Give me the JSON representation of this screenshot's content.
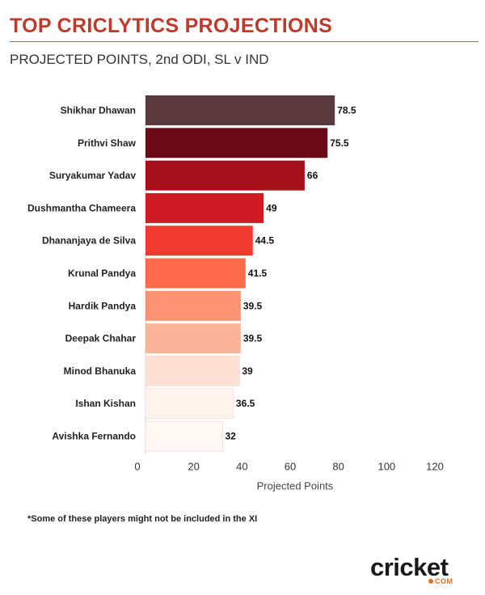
{
  "header": {
    "title": "TOP CRICLYTICS PROJECTIONS",
    "subtitle": "PROJECTED POINTS, 2nd ODI, SL v IND"
  },
  "footnote": "*Some of these players might not be included in the XI",
  "logo": {
    "word": "cricket",
    "sub": "COM"
  },
  "chart_data": {
    "type": "bar",
    "orientation": "horizontal",
    "categories": [
      "Shikhar Dhawan",
      "Prithvi Shaw",
      "Suryakumar Yadav",
      "Dushmantha Chameera",
      "Dhananjaya de Silva",
      "Krunal Pandya",
      "Hardik Pandya",
      "Deepak Chahar",
      "Minod Bhanuka",
      "Ishan Kishan",
      "Avishka Fernando"
    ],
    "values": [
      78.5,
      75.5,
      66,
      49,
      44.5,
      41.5,
      39.5,
      39.5,
      39,
      36.5,
      32
    ],
    "value_labels": [
      "78.5",
      "75.5",
      "66",
      "49",
      "44.5",
      "41.5",
      "39.5",
      "39.5",
      "39",
      "36.5",
      "32"
    ],
    "colors": [
      "#5b3a3f",
      "#6b0a17",
      "#a5121c",
      "#cf1b23",
      "#ef3b2f",
      "#fb6a4a",
      "#fc9272",
      "#fcb499",
      "#fee0d2",
      "#fff5ef",
      "#fff7f3"
    ],
    "xlabel": "Projected Points",
    "ylabel": "",
    "xlim": [
      0,
      120
    ],
    "xticks": [
      0,
      20,
      40,
      60,
      80,
      100,
      120
    ],
    "xtick_labels": [
      "0",
      "20",
      "40",
      "60",
      "80",
      "100",
      "120"
    ],
    "grid": false
  }
}
